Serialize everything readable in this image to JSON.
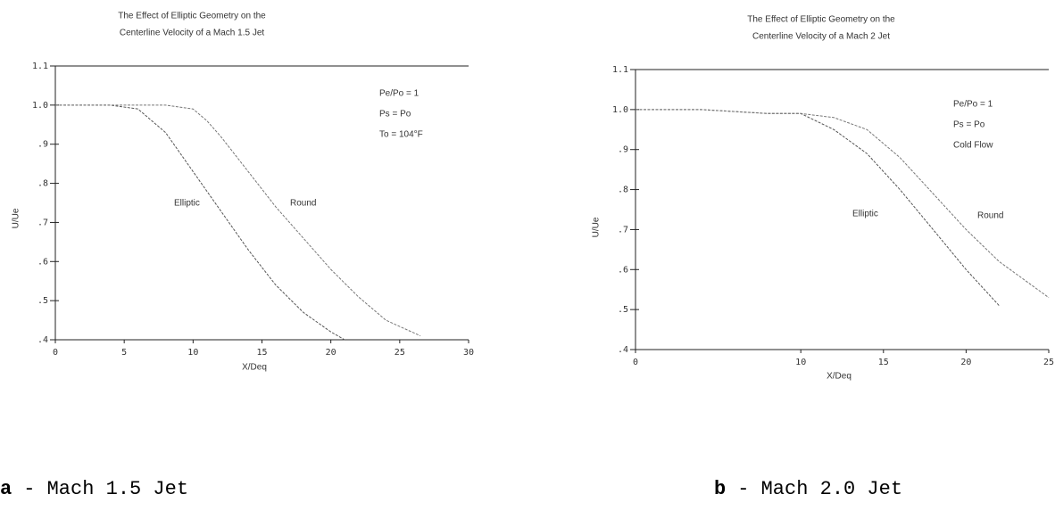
{
  "chart_data": [
    {
      "type": "line",
      "title": [
        "The Effect of Elliptic Geometry on the",
        "Centerline Velocity of a Mach 1.5 Jet"
      ],
      "xlabel": "X/Deq",
      "ylabel": "U/Ue",
      "annotations": [
        "Pe/Po = 1",
        "Ps = Po",
        "To = 104°F"
      ],
      "caption": {
        "letter": "a",
        "text": "- Mach 1.5 Jet"
      },
      "xlim": [
        0,
        30
      ],
      "xticks": [
        0,
        5,
        10,
        15,
        20,
        25,
        30
      ],
      "ylim": [
        0.4,
        1.1
      ],
      "yticks": [
        {
          "value": 0.4,
          "label": ".4"
        },
        {
          "value": 0.5,
          "label": ".5"
        },
        {
          "value": 0.6,
          "label": ".6"
        },
        {
          "value": 0.7,
          "label": ".7"
        },
        {
          "value": 0.8,
          "label": ".8"
        },
        {
          "value": 0.9,
          "label": ".9"
        },
        {
          "value": 1.0,
          "label": "1.0"
        },
        1.1
      ],
      "series": [
        {
          "name": "Elliptic",
          "color": "#555555",
          "x": [
            0,
            2,
            4,
            6,
            7,
            8,
            9,
            10,
            12,
            14,
            16,
            18,
            20,
            21
          ],
          "values": [
            1.0,
            1.0,
            1.0,
            0.99,
            0.96,
            0.93,
            0.88,
            0.83,
            0.73,
            0.63,
            0.54,
            0.47,
            0.42,
            0.4
          ]
        },
        {
          "name": "Round",
          "color": "#777777",
          "x": [
            0,
            4,
            8,
            10,
            11,
            12,
            14,
            16,
            18,
            20,
            22,
            24,
            26.5
          ],
          "values": [
            1.0,
            1.0,
            1.0,
            0.99,
            0.96,
            0.92,
            0.83,
            0.74,
            0.66,
            0.58,
            0.51,
            0.45,
            0.41
          ]
        }
      ]
    },
    {
      "type": "line",
      "title": [
        "The Effect of Elliptic Geometry on the",
        "Centerline Velocity of a Mach 2 Jet"
      ],
      "xlabel": "X/Deq",
      "ylabel": "U/Ue",
      "annotations": [
        "Pe/Po = 1",
        "Ps = Po",
        "Cold Flow"
      ],
      "caption": {
        "letter": "b",
        "text": "- Mach 2.0 Jet"
      },
      "xlim": [
        0,
        25
      ],
      "xticks": [
        0,
        10,
        15,
        20,
        25
      ],
      "ylim": [
        0.4,
        1.1
      ],
      "yticks": [
        {
          "value": 0.4,
          "label": ".4"
        },
        {
          "value": 0.5,
          "label": ".5"
        },
        {
          "value": 0.6,
          "label": ".6"
        },
        {
          "value": 0.7,
          "label": ".7"
        },
        {
          "value": 0.8,
          "label": ".8"
        },
        {
          "value": 0.9,
          "label": ".9"
        },
        {
          "value": 1.0,
          "label": "1.0"
        },
        1.1
      ],
      "series": [
        {
          "name": "Elliptic",
          "color": "#555555",
          "x": [
            0,
            4,
            8,
            10,
            11,
            12,
            14,
            16,
            18,
            20,
            22
          ],
          "values": [
            1.0,
            1.0,
            0.99,
            0.99,
            0.97,
            0.95,
            0.89,
            0.8,
            0.7,
            0.6,
            0.51
          ]
        },
        {
          "name": "Round",
          "color": "#777777",
          "x": [
            0,
            4,
            8,
            10,
            12,
            14,
            16,
            18,
            20,
            22,
            25
          ],
          "values": [
            1.0,
            1.0,
            0.99,
            0.99,
            0.98,
            0.95,
            0.88,
            0.79,
            0.7,
            0.62,
            0.53
          ]
        }
      ]
    }
  ]
}
